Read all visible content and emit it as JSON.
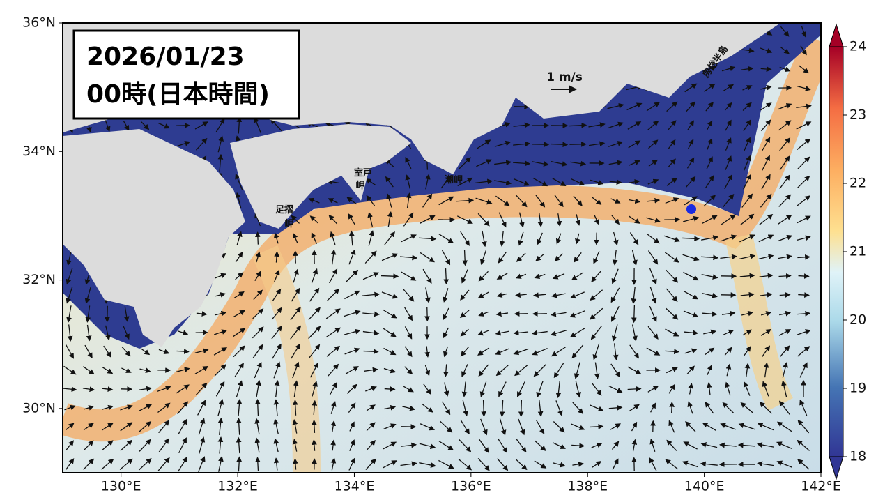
{
  "title": {
    "date": "2026/01/23",
    "time": "00時(日本時間)"
  },
  "map": {
    "xlim": [
      129,
      142
    ],
    "ylim": [
      29,
      36
    ],
    "xticks": [
      {
        "value": 130,
        "label": "130°E"
      },
      {
        "value": 132,
        "label": "132°E"
      },
      {
        "value": 134,
        "label": "134°E"
      },
      {
        "value": 136,
        "label": "136°E"
      },
      {
        "value": 138,
        "label": "138°E"
      },
      {
        "value": 140,
        "label": "140°E"
      },
      {
        "value": 142,
        "label": "142°E"
      }
    ],
    "yticks": [
      {
        "value": 30,
        "label": "30°N"
      },
      {
        "value": 32,
        "label": "32°N"
      },
      {
        "value": 34,
        "label": "34°N"
      },
      {
        "value": 36,
        "label": "36°N"
      }
    ]
  },
  "colorbar": {
    "lim": [
      18,
      24
    ],
    "ticks": [
      18,
      19,
      20,
      21,
      22,
      23,
      24
    ]
  },
  "scale_label": "1 m/s",
  "places": {
    "boso": "房総半島",
    "muroto": [
      "室戸",
      "岬"
    ],
    "shiono": "潮岬",
    "ashizuri": [
      "足摺",
      "岬"
    ]
  }
}
